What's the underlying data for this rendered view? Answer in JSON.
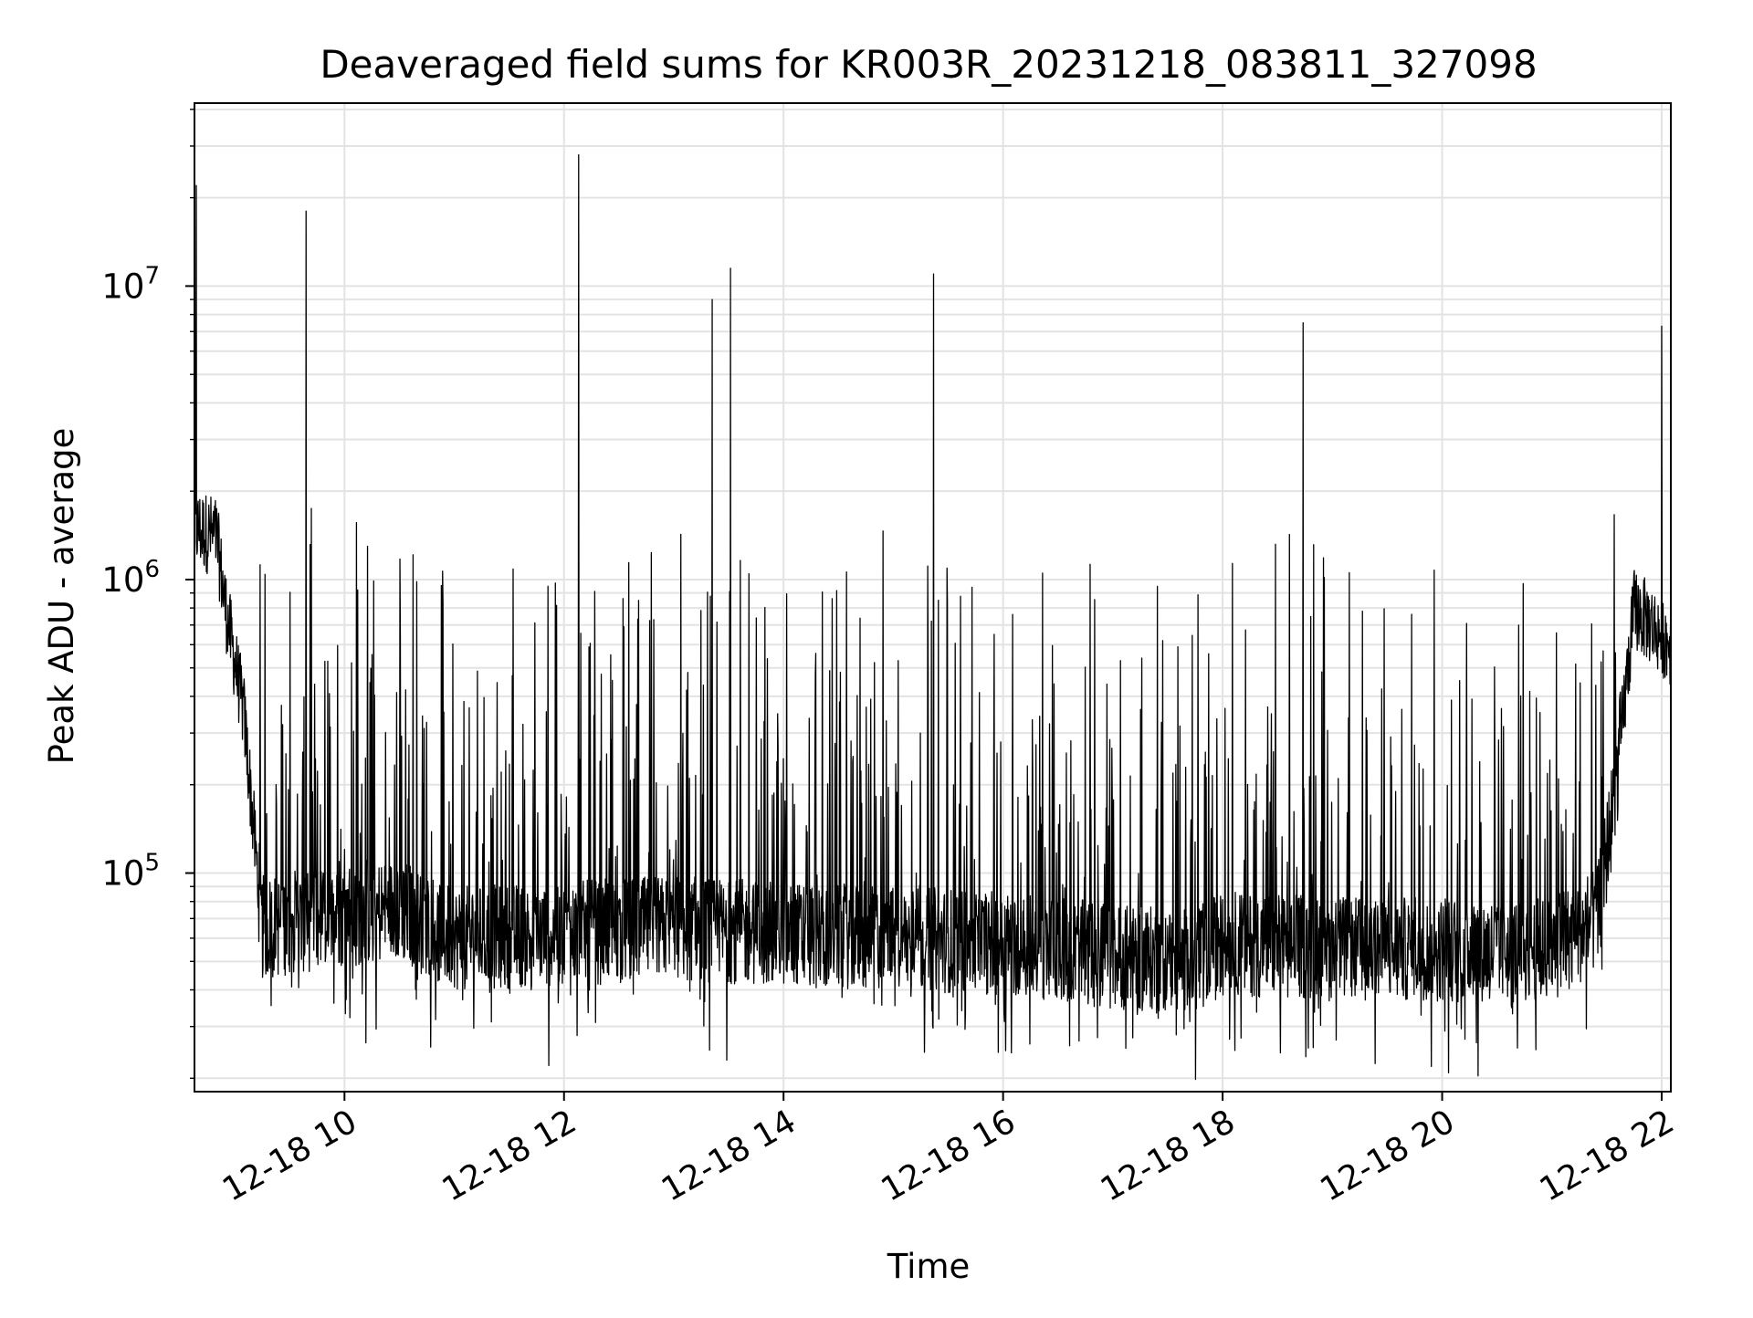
{
  "chart_data": {
    "type": "line",
    "title": "Deaveraged field sums for KR003R_20231218_083811_327098",
    "xlabel": "Time",
    "ylabel": "Peak ADU - average",
    "x_scale": "time",
    "y_scale": "log",
    "xlim": [
      "12-18 08:38",
      "12-18 22:05"
    ],
    "ylim": [
      18000,
      42000000
    ],
    "x_ticks": [
      "12-18 10",
      "12-18 12",
      "12-18 14",
      "12-18 16",
      "12-18 18",
      "12-18 20",
      "12-18 22"
    ],
    "y_ticks": [
      {
        "base": "10",
        "exp": "5",
        "value": 100000
      },
      {
        "base": "10",
        "exp": "6",
        "value": 1000000
      },
      {
        "base": "10",
        "exp": "7",
        "value": 10000000
      }
    ],
    "grid": true,
    "legend": "none",
    "series": [
      {
        "color": "#000000",
        "baseline": [
          [
            "12-18 08:38",
            1500000
          ],
          [
            "12-18 08:50",
            1400000
          ],
          [
            "12-18 08:55",
            800000
          ],
          [
            "12-18 09:05",
            350000
          ],
          [
            "12-18 09:15",
            65000
          ],
          [
            "12-18 09:30",
            68000
          ],
          [
            "12-18 10:00",
            72000
          ],
          [
            "12-18 10:30",
            75000
          ],
          [
            "12-18 11:00",
            60000
          ],
          [
            "12-18 12:00",
            62000
          ],
          [
            "12-18 13:00",
            65000
          ],
          [
            "12-18 14:00",
            62000
          ],
          [
            "12-18 15:00",
            60000
          ],
          [
            "12-18 16:00",
            58000
          ],
          [
            "12-18 17:00",
            52000
          ],
          [
            "12-18 17:45",
            50000
          ],
          [
            "12-18 18:00",
            58000
          ],
          [
            "12-18 19:00",
            55000
          ],
          [
            "12-18 20:00",
            55000
          ],
          [
            "12-18 21:00",
            55000
          ],
          [
            "12-18 21:25",
            70000
          ],
          [
            "12-18 21:35",
            200000
          ],
          [
            "12-18 21:45",
            800000
          ],
          [
            "12-18 22:05",
            600000
          ]
        ],
        "peaks": [
          [
            "12-18 08:39",
            22000000
          ],
          [
            "12-18 09:39",
            18000000
          ],
          [
            "12-18 12:08",
            28000000
          ],
          [
            "12-18 13:21",
            9000000
          ],
          [
            "12-18 13:31",
            11500000
          ],
          [
            "12-18 15:22",
            11000000
          ],
          [
            "12-18 18:44",
            7500000
          ],
          [
            "12-18 22:00",
            7300000
          ]
        ]
      }
    ]
  }
}
